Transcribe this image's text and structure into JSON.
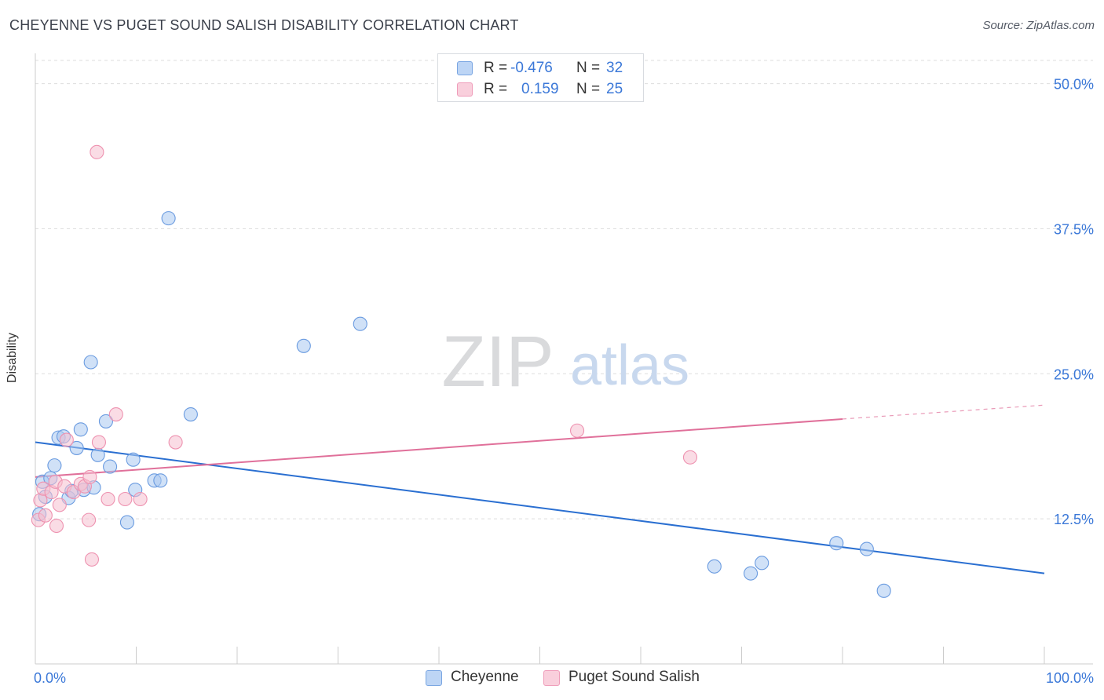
{
  "title": "CHEYENNE VS PUGET SOUND SALISH DISABILITY CORRELATION CHART",
  "source": "Source: ZipAtlas.com",
  "legend": {
    "rows": [
      {
        "r_label": "R =",
        "r_value": "-0.476",
        "n_label": "N =",
        "n_value": "32"
      },
      {
        "r_label": "R =",
        "r_value": "0.159",
        "n_label": "N =",
        "n_value": "25"
      }
    ]
  },
  "bottom_legend": [
    "Cheyenne",
    "Puget Sound Salish"
  ],
  "colors": {
    "cheyenne_fill": "#a9c8f0",
    "cheyenne_stroke": "#6a9be0",
    "cheyenne_line": "#2a6fd1",
    "puget_fill": "#f6bfd0",
    "puget_stroke": "#ee92b0",
    "puget_line": "#e0709a",
    "tick_label": "#3b78d8",
    "grid": "#dddddd"
  },
  "watermark": {
    "part1": "ZIP",
    "part2": "atlas"
  },
  "chart_data": {
    "type": "scatter",
    "title": "CHEYENNE VS PUGET SOUND SALISH DISABILITY CORRELATION CHART",
    "xlabel": "",
    "ylabel": "Disability",
    "xlim": [
      0,
      100
    ],
    "ylim": [
      0,
      52
    ],
    "x_tick_labels": [
      "0.0%",
      "100.0%"
    ],
    "y_ticks": [
      12.5,
      25.0,
      37.5,
      50.0
    ],
    "y_tick_labels": [
      "12.5%",
      "25.0%",
      "37.5%",
      "50.0%"
    ],
    "series": [
      {
        "name": "Cheyenne",
        "r": -0.476,
        "n": 32,
        "trend": {
          "x0": 0,
          "y0": 19.1,
          "x1": 100,
          "y1": 7.8
        },
        "points": [
          {
            "x": 0.4,
            "y": 12.9
          },
          {
            "x": 0.7,
            "y": 15.7
          },
          {
            "x": 1.0,
            "y": 14.4
          },
          {
            "x": 1.5,
            "y": 16.0
          },
          {
            "x": 1.9,
            "y": 17.1
          },
          {
            "x": 2.3,
            "y": 19.5
          },
          {
            "x": 2.8,
            "y": 19.6
          },
          {
            "x": 3.3,
            "y": 14.3
          },
          {
            "x": 3.6,
            "y": 14.9
          },
          {
            "x": 4.1,
            "y": 18.6
          },
          {
            "x": 4.5,
            "y": 20.2
          },
          {
            "x": 4.8,
            "y": 15.0
          },
          {
            "x": 5.5,
            "y": 26.0
          },
          {
            "x": 5.8,
            "y": 15.2
          },
          {
            "x": 6.2,
            "y": 18.0
          },
          {
            "x": 7.0,
            "y": 20.9
          },
          {
            "x": 7.4,
            "y": 17.0
          },
          {
            "x": 9.1,
            "y": 12.2
          },
          {
            "x": 9.7,
            "y": 17.6
          },
          {
            "x": 9.9,
            "y": 15.0
          },
          {
            "x": 11.8,
            "y": 15.8
          },
          {
            "x": 12.4,
            "y": 15.8
          },
          {
            "x": 13.2,
            "y": 38.4
          },
          {
            "x": 15.4,
            "y": 21.5
          },
          {
            "x": 26.6,
            "y": 27.4
          },
          {
            "x": 32.2,
            "y": 29.3
          },
          {
            "x": 67.3,
            "y": 8.4
          },
          {
            "x": 70.9,
            "y": 7.8
          },
          {
            "x": 72.0,
            "y": 8.7
          },
          {
            "x": 79.4,
            "y": 10.4
          },
          {
            "x": 82.4,
            "y": 9.9
          },
          {
            "x": 84.1,
            "y": 6.3
          }
        ]
      },
      {
        "name": "Puget Sound Salish",
        "r": 0.159,
        "n": 25,
        "trend": {
          "x0": 0,
          "y0": 16.1,
          "x1": 80,
          "y1": 21.1,
          "dash_to_x": 100,
          "dash_to_y": 22.3
        },
        "points": [
          {
            "x": 0.3,
            "y": 12.4
          },
          {
            "x": 0.5,
            "y": 14.1
          },
          {
            "x": 0.8,
            "y": 15.1
          },
          {
            "x": 1.0,
            "y": 12.8
          },
          {
            "x": 1.6,
            "y": 14.8
          },
          {
            "x": 2.0,
            "y": 15.7
          },
          {
            "x": 2.1,
            "y": 11.9
          },
          {
            "x": 2.4,
            "y": 13.7
          },
          {
            "x": 2.9,
            "y": 15.3
          },
          {
            "x": 3.1,
            "y": 19.3
          },
          {
            "x": 3.8,
            "y": 14.8
          },
          {
            "x": 4.5,
            "y": 15.5
          },
          {
            "x": 4.9,
            "y": 15.3
          },
          {
            "x": 5.3,
            "y": 12.4
          },
          {
            "x": 5.4,
            "y": 16.1
          },
          {
            "x": 5.6,
            "y": 9.0
          },
          {
            "x": 6.1,
            "y": 44.1
          },
          {
            "x": 6.3,
            "y": 19.1
          },
          {
            "x": 7.2,
            "y": 14.2
          },
          {
            "x": 8.0,
            "y": 21.5
          },
          {
            "x": 8.9,
            "y": 14.2
          },
          {
            "x": 10.4,
            "y": 14.2
          },
          {
            "x": 13.9,
            "y": 19.1
          },
          {
            "x": 53.7,
            "y": 20.1
          },
          {
            "x": 64.9,
            "y": 17.8
          }
        ]
      }
    ]
  }
}
